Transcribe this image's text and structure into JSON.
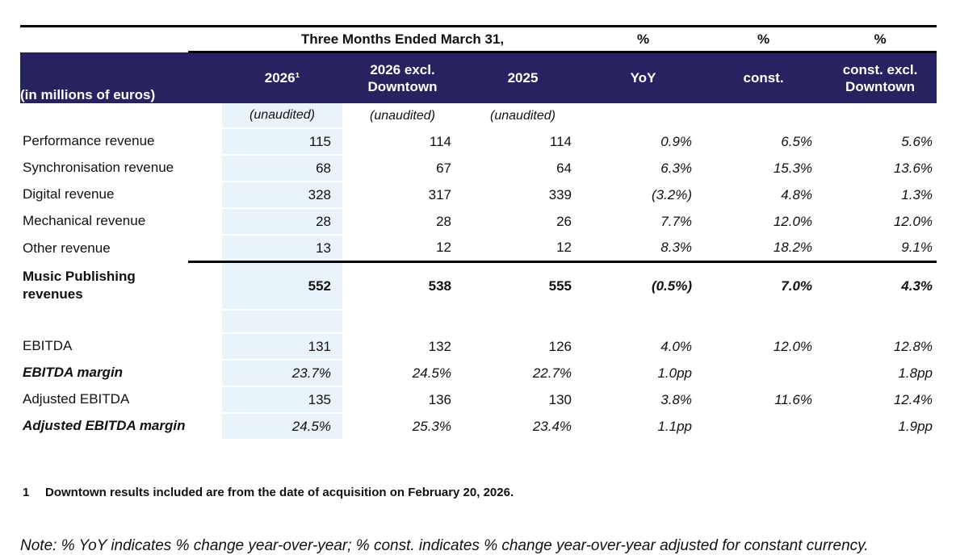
{
  "colors": {
    "header_bg": "#272361",
    "header_text": "#ffffff",
    "highlight_column_bg": "#e8f4fa",
    "rule_color": "#000000"
  },
  "header": {
    "period": "Three Months Ended March 31,",
    "pct": [
      "%",
      "%",
      "%"
    ]
  },
  "table": {
    "corner_label": "(in millions of euros)",
    "columns": [
      "2026¹",
      "2026 excl.\nDowntown",
      "2025",
      "YoY",
      "const.",
      "const. excl.\nDowntown"
    ],
    "subheaders": [
      "(unaudited)",
      "(unaudited)",
      "(unaudited)"
    ],
    "rows": [
      {
        "label": "Performance revenue",
        "cells": [
          "115",
          "114",
          "114",
          "0.9%",
          "6.5%",
          "5.6%"
        ]
      },
      {
        "label": "Synchronisation revenue",
        "cells": [
          "68",
          "67",
          "64",
          "6.3%",
          "15.3%",
          "13.6%"
        ]
      },
      {
        "label": "Digital revenue",
        "cells": [
          "328",
          "317",
          "339",
          "(3.2%)",
          "4.8%",
          "1.3%"
        ]
      },
      {
        "label": "Mechanical revenue",
        "cells": [
          "28",
          "28",
          "26",
          "7.7%",
          "12.0%",
          "12.0%"
        ]
      },
      {
        "label": "Other revenue",
        "cells": [
          "13",
          "12",
          "12",
          "8.3%",
          "18.2%",
          "9.1%"
        ]
      },
      {
        "label": "Music Publishing revenues",
        "cells": [
          "552",
          "538",
          "555",
          "(0.5%)",
          "7.0%",
          "4.3%"
        ]
      },
      {
        "label": "",
        "cells": [
          "",
          "",
          "",
          "",
          "",
          ""
        ]
      },
      {
        "label": "EBITDA",
        "cells": [
          "131",
          "132",
          "126",
          "4.0%",
          "12.0%",
          "12.8%"
        ]
      },
      {
        "label": "EBITDA margin",
        "cells": [
          "23.7%",
          "24.5%",
          "22.7%",
          "1.0pp",
          "",
          "1.8pp"
        ]
      },
      {
        "label": "Adjusted EBITDA",
        "cells": [
          "135",
          "136",
          "130",
          "3.8%",
          "11.6%",
          "12.4%"
        ]
      },
      {
        "label": "Adjusted EBITDA margin",
        "cells": [
          "24.5%",
          "25.3%",
          "23.4%",
          "1.1pp",
          "",
          "1.9pp"
        ]
      }
    ]
  },
  "footnote": {
    "num": "1",
    "text": "Downtown results included are from the date of acquisition on February 20, 2026."
  },
  "note": "Note: % YoY indicates % change year-over-year; % const. indicates % change year-over-year adjusted for constant currency."
}
